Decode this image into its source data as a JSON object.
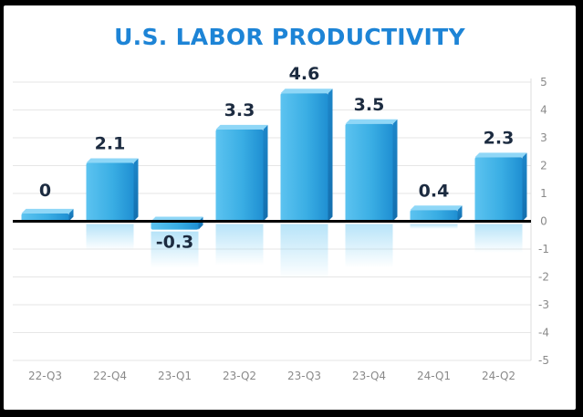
{
  "chart_data": {
    "type": "bar",
    "title": "U.S. LABOR PRODUCTIVITY",
    "categories": [
      "22-Q3",
      "22-Q4",
      "23-Q1",
      "23-Q2",
      "23-Q3",
      "23-Q4",
      "24-Q1",
      "24-Q2"
    ],
    "values": [
      0,
      2.1,
      -0.3,
      3.3,
      4.6,
      3.5,
      0.4,
      2.3
    ],
    "data_labels": [
      "0",
      "2.1",
      "-0.3",
      "3.3",
      "4.6",
      "3.5",
      "0.4",
      "2.3"
    ],
    "ylim": [
      -5,
      5
    ],
    "yticks": [
      5,
      4,
      3,
      2,
      1,
      0,
      -1,
      -2,
      -3,
      -4,
      -5
    ],
    "y_axis_position": "right",
    "grid": true,
    "legend": "none",
    "xlabel": "",
    "ylabel": "",
    "colors": {
      "bar": "#3aaee4",
      "bar_top": "#8fd7f7",
      "bar_dark": "#1579bf",
      "title": "#1d84d6",
      "zero_line": "#000000",
      "grid": "#e6e6e6"
    }
  }
}
